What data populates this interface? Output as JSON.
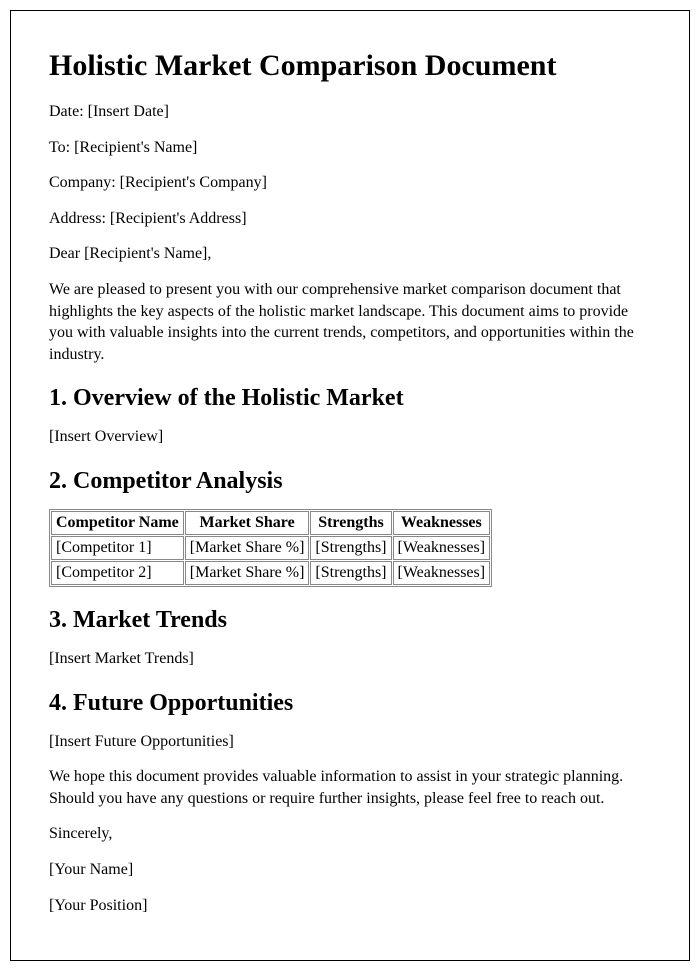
{
  "title": "Holistic Market Comparison Document",
  "meta": {
    "date": "Date: [Insert Date]",
    "to": "To: [Recipient's Name]",
    "company": "Company: [Recipient's Company]",
    "address": "Address: [Recipient's Address]"
  },
  "salutation": "Dear [Recipient's Name],",
  "intro": "We are pleased to present you with our comprehensive market comparison document that highlights the key aspects of the holistic market landscape. This document aims to provide you with valuable insights into the current trends, competitors, and opportunities within the industry.",
  "section1": {
    "heading": "1. Overview of the Holistic Market",
    "body": "[Insert Overview]"
  },
  "section2": {
    "heading": "2. Competitor Analysis",
    "table": {
      "headers": {
        "c0": "Competitor Name",
        "c1": "Market Share",
        "c2": "Strengths",
        "c3": "Weaknesses"
      },
      "row1": {
        "c0": "[Competitor 1]",
        "c1": "[Market Share %]",
        "c2": "[Strengths]",
        "c3": "[Weaknesses]"
      },
      "row2": {
        "c0": "[Competitor 2]",
        "c1": "[Market Share %]",
        "c2": "[Strengths]",
        "c3": "[Weaknesses]"
      }
    }
  },
  "section3": {
    "heading": "3. Market Trends",
    "body": "[Insert Market Trends]"
  },
  "section4": {
    "heading": "4. Future Opportunities",
    "body": "[Insert Future Opportunities]"
  },
  "closing": "We hope this document provides valuable information to assist in your strategic planning. Should you have any questions or require further insights, please feel free to reach out.",
  "signoff": {
    "sincerely": "Sincerely,",
    "name": "[Your Name]",
    "position": "[Your Position]"
  }
}
